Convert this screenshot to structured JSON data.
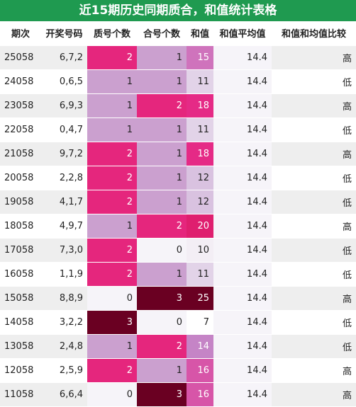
{
  "title": "近15期历史同期质合，和值统计表格",
  "headers": [
    "期次",
    "开奖号码",
    "质号个数",
    "合号个数",
    "和值",
    "和值平均值",
    "和值和均值比较"
  ],
  "rows": [
    {
      "period": "25058",
      "numbers": "6,7,2",
      "prime": 2,
      "composite": 1,
      "sum": 15,
      "avg": "14.4",
      "compare": "高"
    },
    {
      "period": "24058",
      "numbers": "0,6,5",
      "prime": 1,
      "composite": 1,
      "sum": 11,
      "avg": "14.4",
      "compare": "低"
    },
    {
      "period": "23058",
      "numbers": "6,9,3",
      "prime": 1,
      "composite": 2,
      "sum": 18,
      "avg": "14.4",
      "compare": "高"
    },
    {
      "period": "22058",
      "numbers": "0,4,7",
      "prime": 1,
      "composite": 1,
      "sum": 11,
      "avg": "14.4",
      "compare": "低"
    },
    {
      "period": "21058",
      "numbers": "9,7,2",
      "prime": 2,
      "composite": 1,
      "sum": 18,
      "avg": "14.4",
      "compare": "高"
    },
    {
      "period": "20058",
      "numbers": "2,2,8",
      "prime": 2,
      "composite": 1,
      "sum": 12,
      "avg": "14.4",
      "compare": "低"
    },
    {
      "period": "19058",
      "numbers": "4,1,7",
      "prime": 2,
      "composite": 1,
      "sum": 12,
      "avg": "14.4",
      "compare": "低"
    },
    {
      "period": "18058",
      "numbers": "4,9,7",
      "prime": 1,
      "composite": 2,
      "sum": 20,
      "avg": "14.4",
      "compare": "高"
    },
    {
      "period": "17058",
      "numbers": "7,3,0",
      "prime": 2,
      "composite": 0,
      "sum": 10,
      "avg": "14.4",
      "compare": "低"
    },
    {
      "period": "16058",
      "numbers": "1,1,9",
      "prime": 2,
      "composite": 1,
      "sum": 11,
      "avg": "14.4",
      "compare": "低"
    },
    {
      "period": "15058",
      "numbers": "8,8,9",
      "prime": 0,
      "composite": 3,
      "sum": 25,
      "avg": "14.4",
      "compare": "高"
    },
    {
      "period": "14058",
      "numbers": "3,2,2",
      "prime": 3,
      "composite": 0,
      "sum": 7,
      "avg": "14.4",
      "compare": "低"
    },
    {
      "period": "13058",
      "numbers": "2,4,8",
      "prime": 1,
      "composite": 2,
      "sum": 14,
      "avg": "14.4",
      "compare": "低"
    },
    {
      "period": "12058",
      "numbers": "2,5,9",
      "prime": 2,
      "composite": 1,
      "sum": 16,
      "avg": "14.4",
      "compare": "高"
    },
    {
      "period": "11058",
      "numbers": "6,6,4",
      "prime": 0,
      "composite": 3,
      "sum": 16,
      "avg": "14.4",
      "compare": "高"
    }
  ],
  "colors": {
    "title_bg": "#1f9a50",
    "count_0": "#f6f4f9",
    "count_1": "#cba0cf",
    "count_2": "#e5267d",
    "count_3": "#6a0022",
    "sum_7": "#ffffff",
    "sum_10": "#f3eef5",
    "sum_11": "#e2d3e8",
    "sum_12": "#d9c2e0",
    "sum_14": "#c584c6",
    "sum_15": "#cf73bc",
    "sum_16": "#d755a8",
    "sum_18": "#e52a86",
    "sum_20": "#df1f6f",
    "sum_25": "#6a0022",
    "avg_bg": "#f6f4f9"
  }
}
